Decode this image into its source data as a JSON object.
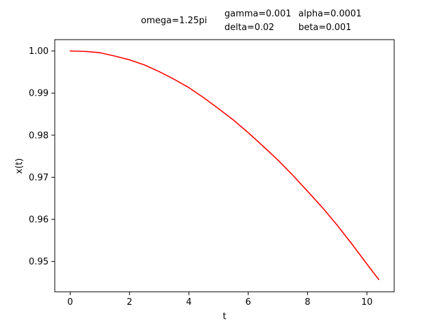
{
  "annotations": {
    "omega": "omega=1.25pi",
    "gamma": "gamma=0.001",
    "alpha": "alpha=0.0001",
    "delta": "delta=0.02",
    "beta": "beta=0.001"
  },
  "chart_data": {
    "type": "line",
    "title": "",
    "xlabel": "t",
    "ylabel": "x(t)",
    "xlim": [
      -0.52,
      10.92
    ],
    "ylim": [
      0.9428,
      1.0027
    ],
    "xticks": [
      0,
      2,
      4,
      6,
      8,
      10
    ],
    "yticks": [
      0.95,
      0.96,
      0.97,
      0.98,
      0.99,
      1.0
    ],
    "ytick_labels": [
      "0.95",
      "0.96",
      "0.97",
      "0.98",
      "0.99",
      "1.00"
    ],
    "grid": false,
    "series": [
      {
        "color": "#ff0000",
        "x": [
          0,
          0.5,
          1.0,
          1.5,
          2.0,
          2.5,
          3.0,
          3.5,
          4.0,
          4.5,
          5.0,
          5.5,
          6.0,
          6.5,
          7.0,
          7.5,
          8.0,
          8.5,
          9.0,
          9.5,
          10.0,
          10.4
        ],
        "y": [
          1.0,
          0.9999,
          0.9996,
          0.9988,
          0.9979,
          0.9967,
          0.9951,
          0.9933,
          0.9913,
          0.9889,
          0.9863,
          0.9836,
          0.9806,
          0.9774,
          0.9741,
          0.9705,
          0.9667,
          0.9628,
          0.9586,
          0.9541,
          0.9494,
          0.9457
        ]
      }
    ]
  }
}
